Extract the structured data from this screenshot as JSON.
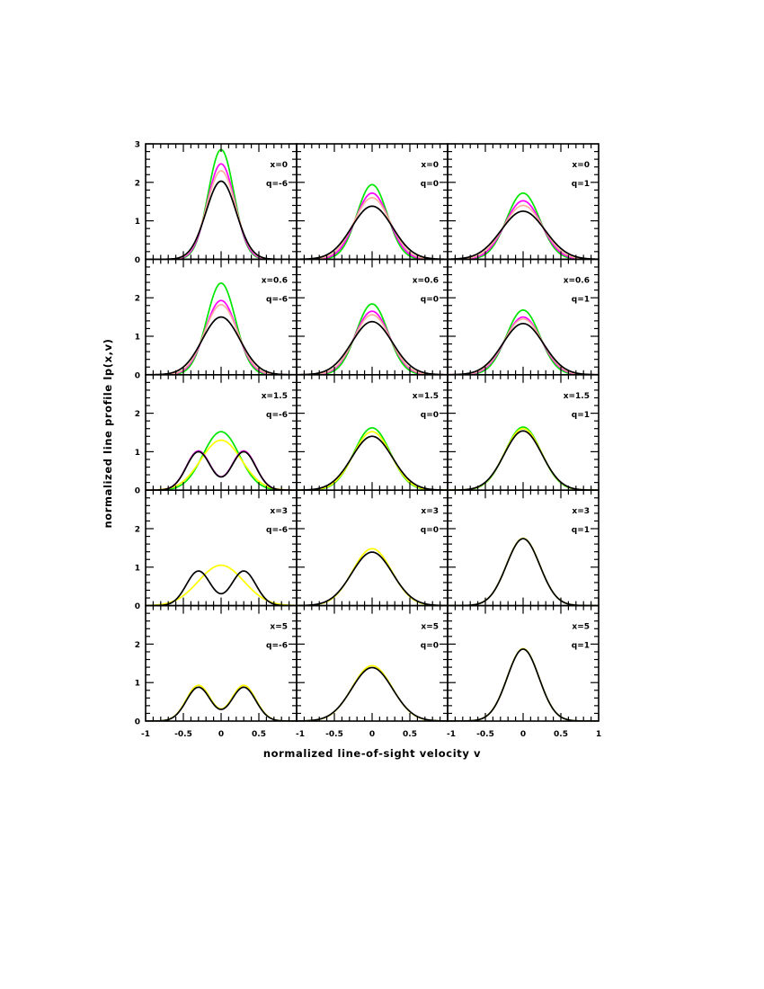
{
  "figure": {
    "ylabel": "normalized line profile lp(x,v)",
    "xlabel": "normalized line-of-sight velocity v",
    "colors": {
      "green": "#00e600",
      "magenta": "#ff00ff",
      "orange": "#ffb0a0",
      "yellow": "#ffff00",
      "black": "#000000"
    }
  },
  "chart_data": {
    "type": "line",
    "layout": "5x3 grid of panels, shared axes",
    "xlim": [
      -1,
      1
    ],
    "x_ticks": [
      "-1",
      "-0.5",
      "0",
      "0.5",
      "1"
    ],
    "row_yticks": [
      [
        "0",
        "1",
        "2",
        "3"
      ],
      [
        "0",
        "1",
        "2"
      ],
      [
        "0",
        "1",
        "2"
      ],
      [
        "0",
        "1",
        "2"
      ],
      [
        "0",
        "1",
        "2"
      ]
    ],
    "row_ylim": [
      [
        0,
        3
      ],
      [
        0,
        3
      ],
      [
        0,
        3
      ],
      [
        0,
        3
      ],
      [
        0,
        3
      ]
    ],
    "grid": false,
    "legend": "none",
    "series_colors": [
      "green",
      "magenta",
      "orange",
      "yellow",
      "black"
    ],
    "panels": [
      {
        "row": 0,
        "col": 0,
        "label_x": "x=0",
        "label_q": "q=-6",
        "curves": [
          {
            "color": "green",
            "peak": 2.85,
            "sigma": 0.17
          },
          {
            "color": "magenta",
            "peak": 2.48,
            "sigma": 0.18
          },
          {
            "color": "orange",
            "peak": 2.3,
            "sigma": 0.19
          },
          {
            "color": "black",
            "peak": 2.03,
            "sigma": 0.2
          }
        ]
      },
      {
        "row": 0,
        "col": 1,
        "label_x": "x=0",
        "label_q": "q=0",
        "curves": [
          {
            "color": "green",
            "peak": 1.94,
            "sigma": 0.2
          },
          {
            "color": "magenta",
            "peak": 1.72,
            "sigma": 0.22
          },
          {
            "color": "orange",
            "peak": 1.6,
            "sigma": 0.24
          },
          {
            "color": "black",
            "peak": 1.38,
            "sigma": 0.27
          }
        ]
      },
      {
        "row": 0,
        "col": 2,
        "label_x": "x=0",
        "label_q": "q=1",
        "curves": [
          {
            "color": "green",
            "peak": 1.72,
            "sigma": 0.22
          },
          {
            "color": "magenta",
            "peak": 1.52,
            "sigma": 0.24
          },
          {
            "color": "orange",
            "peak": 1.4,
            "sigma": 0.26
          },
          {
            "color": "black",
            "peak": 1.25,
            "sigma": 0.29
          }
        ]
      },
      {
        "row": 1,
        "col": 0,
        "label_x": "x=0.6",
        "label_q": "q=-6",
        "curves": [
          {
            "color": "green",
            "peak": 2.38,
            "sigma": 0.19
          },
          {
            "color": "magenta",
            "peak": 1.93,
            "sigma": 0.21
          },
          {
            "color": "orange",
            "peak": 1.82,
            "sigma": 0.22
          },
          {
            "color": "black",
            "peak": 1.5,
            "sigma": 0.25
          }
        ]
      },
      {
        "row": 1,
        "col": 1,
        "label_x": "x=0.6",
        "label_q": "q=0",
        "curves": [
          {
            "color": "green",
            "peak": 1.84,
            "sigma": 0.21
          },
          {
            "color": "magenta",
            "peak": 1.65,
            "sigma": 0.23
          },
          {
            "color": "orange",
            "peak": 1.56,
            "sigma": 0.24
          },
          {
            "color": "black",
            "peak": 1.38,
            "sigma": 0.27
          }
        ]
      },
      {
        "row": 1,
        "col": 2,
        "label_x": "x=0.6",
        "label_q": "q=1",
        "curves": [
          {
            "color": "green",
            "peak": 1.68,
            "sigma": 0.22
          },
          {
            "color": "magenta",
            "peak": 1.5,
            "sigma": 0.24
          },
          {
            "color": "orange",
            "peak": 1.45,
            "sigma": 0.25
          },
          {
            "color": "black",
            "peak": 1.33,
            "sigma": 0.27
          }
        ]
      },
      {
        "row": 2,
        "col": 0,
        "label_x": "x=1.5",
        "label_q": "q=-6",
        "curves": [
          {
            "color": "green",
            "peak": 1.52,
            "sigma": 0.24
          },
          {
            "color": "yellow",
            "peak": 1.3,
            "sigma": 0.27
          },
          {
            "color": "magenta",
            "peak": 1.02,
            "flat": true
          },
          {
            "color": "black",
            "peak": 1.0,
            "flat": true
          }
        ]
      },
      {
        "row": 2,
        "col": 1,
        "label_x": "x=1.5",
        "label_q": "q=0",
        "curves": [
          {
            "color": "green",
            "peak": 1.62,
            "sigma": 0.24
          },
          {
            "color": "yellow",
            "peak": 1.52,
            "sigma": 0.25
          },
          {
            "color": "black",
            "peak": 1.4,
            "sigma": 0.27
          }
        ]
      },
      {
        "row": 2,
        "col": 2,
        "label_x": "x=1.5",
        "label_q": "q=1",
        "curves": [
          {
            "color": "green",
            "peak": 1.64,
            "sigma": 0.24
          },
          {
            "color": "yellow",
            "peak": 1.6,
            "sigma": 0.245
          },
          {
            "color": "black",
            "peak": 1.54,
            "sigma": 0.25
          }
        ]
      },
      {
        "row": 3,
        "col": 0,
        "label_x": "x=3",
        "label_q": "q=-6",
        "curves": [
          {
            "color": "yellow",
            "peak": 1.05,
            "sigma": 0.3
          },
          {
            "color": "black",
            "peak": 0.9,
            "flat": true
          }
        ]
      },
      {
        "row": 3,
        "col": 1,
        "label_x": "x=3",
        "label_q": "q=0",
        "curves": [
          {
            "color": "yellow",
            "peak": 1.48,
            "sigma": 0.26
          },
          {
            "color": "black",
            "peak": 1.39,
            "sigma": 0.27
          }
        ]
      },
      {
        "row": 3,
        "col": 2,
        "label_x": "x=3",
        "label_q": "q=1",
        "curves": [
          {
            "color": "yellow",
            "peak": 1.75,
            "sigma": 0.22
          },
          {
            "color": "black",
            "peak": 1.74,
            "sigma": 0.22
          }
        ]
      },
      {
        "row": 4,
        "col": 0,
        "label_x": "x=5",
        "label_q": "q=-6",
        "curves": [
          {
            "color": "yellow",
            "peak": 0.93,
            "flat": true
          },
          {
            "color": "black",
            "peak": 0.88,
            "flat": true
          }
        ]
      },
      {
        "row": 4,
        "col": 1,
        "label_x": "x=5",
        "label_q": "q=0",
        "curves": [
          {
            "color": "yellow",
            "peak": 1.44,
            "sigma": 0.265
          },
          {
            "color": "black",
            "peak": 1.39,
            "sigma": 0.27
          }
        ]
      },
      {
        "row": 4,
        "col": 2,
        "label_x": "x=5",
        "label_q": "q=1",
        "curves": [
          {
            "color": "yellow",
            "peak": 1.88,
            "sigma": 0.21
          },
          {
            "color": "black",
            "peak": 1.87,
            "sigma": 0.21
          }
        ]
      }
    ]
  }
}
